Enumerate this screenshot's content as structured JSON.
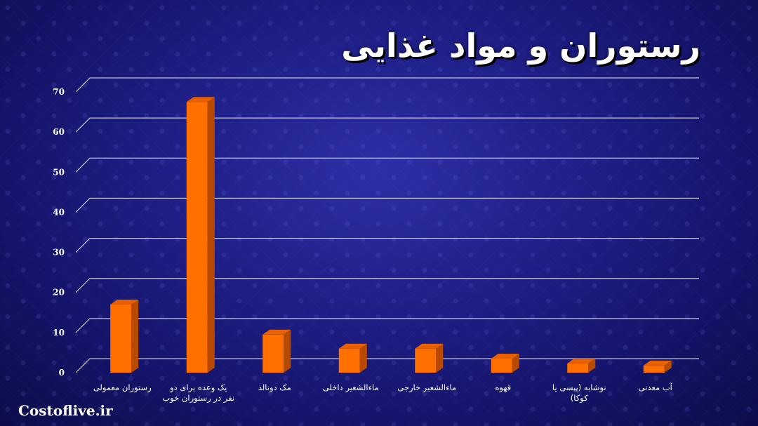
{
  "title": "رستوران و مواد غذایی",
  "watermark": "Costoflive.ir",
  "colors": {
    "bar_front": "#ff7000",
    "bar_side": "#b84a00",
    "bar_top": "#e85f00",
    "gridline": "#ffffff",
    "text": "#ffffff"
  },
  "chart_data": {
    "type": "bar",
    "title": "رستوران و مواد غذایی",
    "xlabel": "",
    "ylabel": "",
    "ylim": [
      0,
      70
    ],
    "yticks": [
      0,
      10,
      20,
      30,
      40,
      50,
      60,
      70
    ],
    "grid": true,
    "categories": [
      [
        "رستوران معمولی"
      ],
      [
        "یک وعده برای دو",
        "نفر در رستوران خوب"
      ],
      [
        "مک دونالد"
      ],
      [
        "ماءالشعیر داخلی"
      ],
      [
        "ماءالشعیر خارجی"
      ],
      [
        "قهوه"
      ],
      [
        "نوشابه (پپسی یا",
        "کوکا)"
      ],
      [
        "آب معدنی"
      ]
    ],
    "values": [
      17,
      67.5,
      9.5,
      6,
      6,
      3.5,
      2.3,
      1.8
    ]
  }
}
